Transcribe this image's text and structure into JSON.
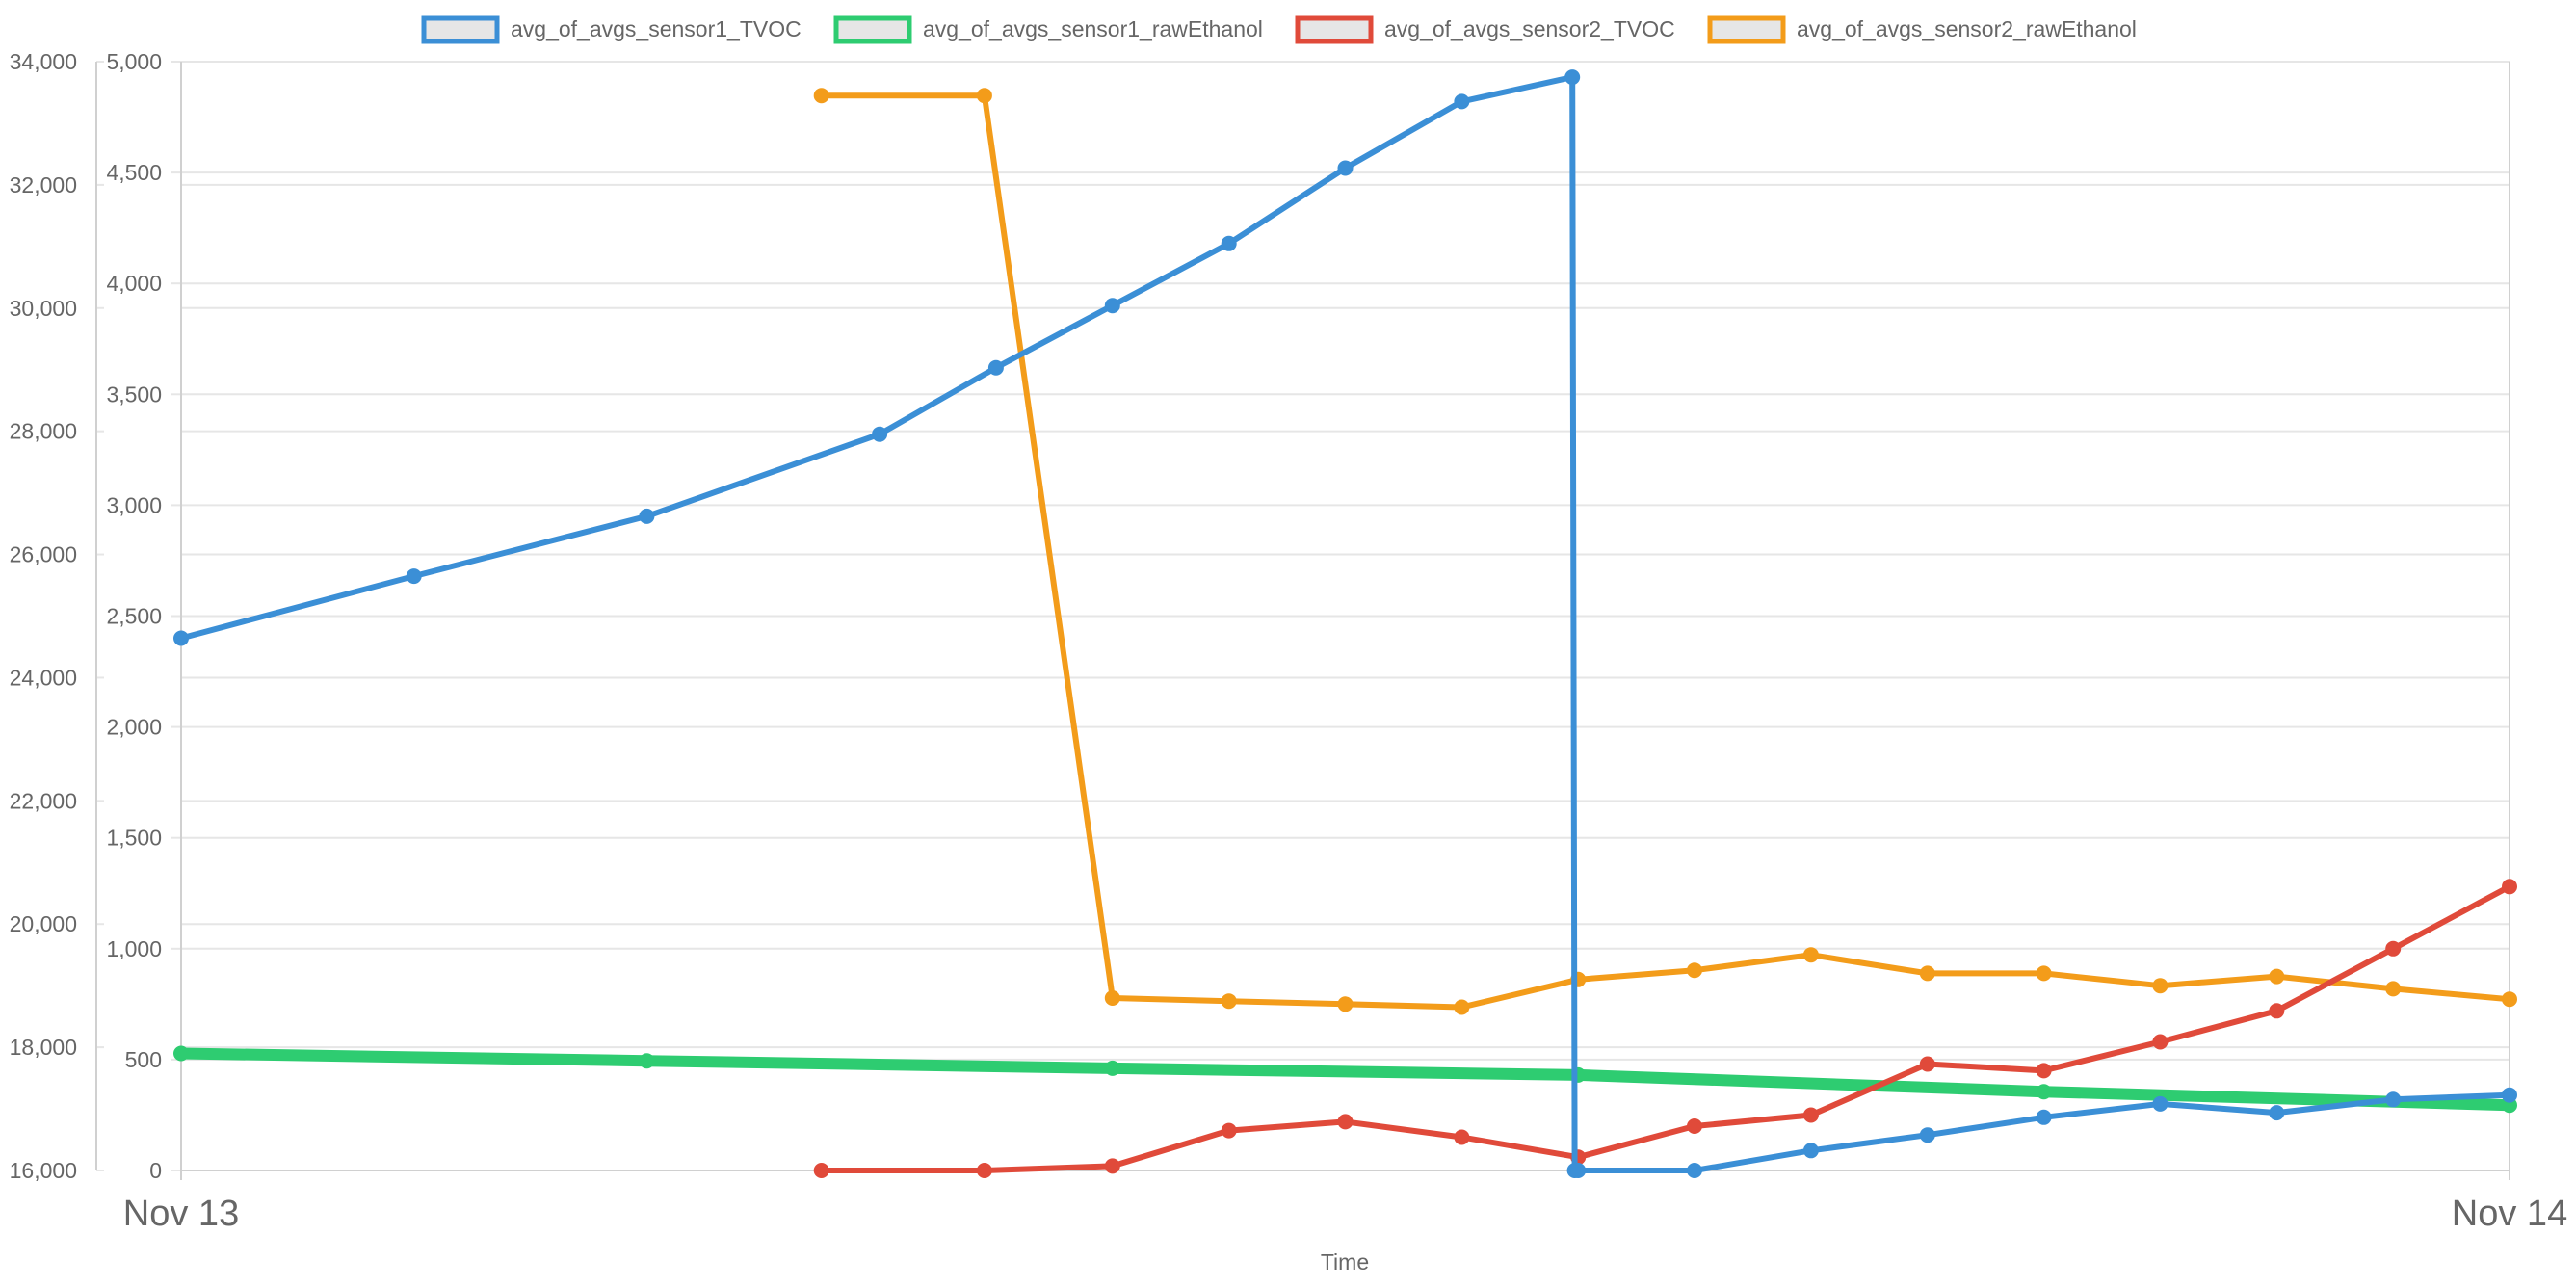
{
  "chart_data": {
    "type": "line",
    "xlabel": "Time",
    "x_ticks": [
      "Nov 13",
      "Nov 14"
    ],
    "x_range": [
      "Nov 13",
      "Nov 14"
    ],
    "y_axis_left": {
      "ticks": [
        "34,000",
        "32,000",
        "30,000",
        "28,000",
        "26,000",
        "24,000",
        "22,000",
        "20,000",
        "18,000",
        "16,000"
      ],
      "ylim": [
        16000,
        34000
      ]
    },
    "y_axis_right": {
      "ticks": [
        "5,000",
        "4,500",
        "4,000",
        "3,500",
        "3,000",
        "2,500",
        "2,000",
        "1,500",
        "1,000",
        "500",
        "0"
      ],
      "ylim": [
        0,
        5000
      ]
    },
    "grid": true,
    "legend_position": "top-center",
    "x_unit": "fraction of day from Nov 13",
    "series": [
      {
        "name": "avg_of_avgs_sensor1_TVOC",
        "color": "#3b8fd6",
        "axis": "right",
        "x": [
          0.0,
          0.1,
          0.2,
          0.3,
          0.35,
          0.4,
          0.45,
          0.5,
          0.55,
          0.5975,
          0.5985,
          0.6,
          0.65,
          0.7,
          0.75,
          0.8,
          0.85,
          0.9,
          0.95,
          1.0
        ],
        "y": [
          2400,
          2680,
          2950,
          3320,
          3620,
          3900,
          4180,
          4520,
          4820,
          4930,
          0,
          0,
          0,
          90,
          160,
          240,
          300,
          260,
          320,
          340
        ]
      },
      {
        "name": "avg_of_avgs_sensor1_rawEthanol",
        "color": "#2ecc71",
        "axis": "left",
        "x": [
          0.0,
          0.2,
          0.4,
          0.6,
          0.8,
          1.0
        ],
        "y": [
          17900,
          17780,
          17660,
          17550,
          17280,
          17060
        ]
      },
      {
        "name": "avg_of_avgs_sensor2_TVOC",
        "color": "#e04a3a",
        "axis": "right",
        "x": [
          0.275,
          0.345,
          0.4,
          0.45,
          0.5,
          0.55,
          0.6,
          0.65,
          0.7,
          0.75,
          0.8,
          0.85,
          0.9,
          0.95,
          1.0
        ],
        "y": [
          0,
          0,
          20,
          180,
          220,
          150,
          60,
          200,
          250,
          480,
          450,
          580,
          720,
          1000,
          1280
        ]
      },
      {
        "name": "avg_of_avgs_sensor2_rawEthanol",
        "color": "#f39c1a",
        "axis": "left",
        "x": [
          0.275,
          0.345,
          0.4,
          0.45,
          0.5,
          0.55,
          0.6,
          0.65,
          0.7,
          0.75,
          0.8,
          0.85,
          0.9,
          0.95,
          1.0
        ],
        "y": [
          33450,
          33450,
          18800,
          18750,
          18700,
          18650,
          19100,
          19250,
          19500,
          19200,
          19200,
          19000,
          19150,
          18950,
          18780
        ]
      }
    ]
  }
}
